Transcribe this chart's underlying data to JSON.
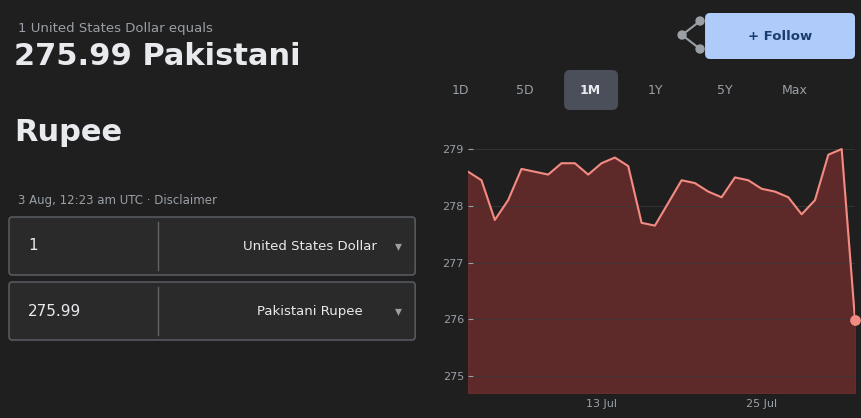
{
  "bg_color": "#1f1f1f",
  "subtitle": "1 United States Dollar equals",
  "main_value": "275.99 Pakistani",
  "main_value2": "Rupee",
  "timestamp": "3 Aug, 12:23 am UTC · Disclaimer",
  "input1_value": "1",
  "input1_label": "United States Dollar",
  "input2_value": "275.99",
  "input2_label": "Pakistani Rupee",
  "tab_labels": [
    "1D",
    "5D",
    "1M",
    "1Y",
    "5Y",
    "Max"
  ],
  "active_tab": "1M",
  "active_tab_bg": "#4a4f5a",
  "y_ticks": [
    275,
    276,
    277,
    278,
    279
  ],
  "x_tick_labels": [
    "13 Jul",
    "25 Jul"
  ],
  "x_tick_pos": [
    10,
    22
  ],
  "y_min": 274.7,
  "y_max": 279.6,
  "line_color": "#f28b82",
  "fill_color": "#7a2e2e",
  "endpoint_color": "#f28b82",
  "grid_color": "#383838",
  "text_color_primary": "#e8eaed",
  "text_color_secondary": "#9aa0a6",
  "follow_button_color": "#aecbfa",
  "follow_text_color": "#1a3c6e",
  "box_border_color": "#5f6368",
  "box_bg_color": "#2a2a2a",
  "chart_data_x": [
    0,
    1,
    2,
    3,
    4,
    5,
    6,
    7,
    8,
    9,
    10,
    11,
    12,
    13,
    14,
    15,
    16,
    17,
    18,
    19,
    20,
    21,
    22,
    23,
    24,
    25,
    26,
    27,
    28,
    29
  ],
  "chart_data_y": [
    278.6,
    278.45,
    277.75,
    278.1,
    278.65,
    278.6,
    278.55,
    278.75,
    278.75,
    278.55,
    278.75,
    278.85,
    278.7,
    277.7,
    277.65,
    278.05,
    278.45,
    278.4,
    278.25,
    278.15,
    278.5,
    278.45,
    278.3,
    278.25,
    278.15,
    277.85,
    278.1,
    278.9,
    279.0,
    275.99
  ]
}
